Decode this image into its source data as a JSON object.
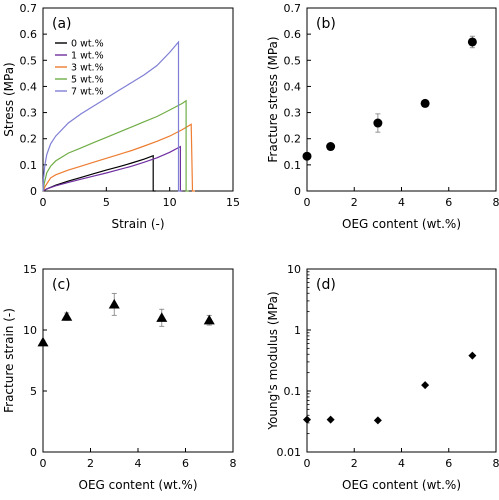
{
  "chart_data": [
    {
      "type": "line",
      "panel_label": "(a)",
      "xlabel": "Strain (-)",
      "ylabel": "Stress (MPa)",
      "xlim": [
        0,
        15
      ],
      "ylim": [
        0,
        0.7
      ],
      "xticks": [
        0,
        5,
        10,
        15
      ],
      "yticks": [
        0,
        0.1,
        0.2,
        0.3,
        0.4,
        0.5,
        0.6,
        0.7
      ],
      "legend_position": "top-left",
      "series": [
        {
          "name": "0 wt.%",
          "color": "#000000",
          "x": [
            0,
            0.3,
            1,
            2,
            3,
            4,
            5,
            6,
            7,
            8,
            8.7,
            8.7,
            8.9
          ],
          "y": [
            0,
            0.008,
            0.022,
            0.038,
            0.052,
            0.066,
            0.08,
            0.093,
            0.107,
            0.122,
            0.135,
            0,
            0
          ]
        },
        {
          "name": "1 wt.%",
          "color": "#7030a0",
          "x": [
            0,
            0.3,
            1,
            2,
            3,
            4,
            5,
            6,
            7,
            8,
            9,
            10,
            10.85,
            10.85,
            11.0
          ],
          "y": [
            0,
            0.008,
            0.02,
            0.033,
            0.045,
            0.057,
            0.069,
            0.082,
            0.095,
            0.11,
            0.127,
            0.148,
            0.17,
            0,
            0
          ]
        },
        {
          "name": "3 wt.%",
          "color": "#ed7d31",
          "x": [
            0,
            0.2,
            0.6,
            1,
            2,
            3,
            4,
            5,
            6,
            7,
            8,
            9,
            10,
            11,
            11.7,
            11.8,
            12.0
          ],
          "y": [
            0,
            0.02,
            0.05,
            0.062,
            0.08,
            0.095,
            0.11,
            0.125,
            0.14,
            0.155,
            0.172,
            0.19,
            0.21,
            0.235,
            0.255,
            0,
            0
          ]
        },
        {
          "name": "5 wt.%",
          "color": "#70ad47",
          "x": [
            0,
            0.1,
            0.3,
            0.6,
            1,
            2,
            3,
            4,
            5,
            6,
            7,
            8,
            9,
            10,
            11,
            11.3,
            11.3,
            11.5
          ],
          "y": [
            0,
            0.03,
            0.07,
            0.095,
            0.115,
            0.145,
            0.165,
            0.185,
            0.205,
            0.225,
            0.245,
            0.265,
            0.285,
            0.31,
            0.335,
            0.345,
            0,
            0
          ]
        },
        {
          "name": "7 wt.%",
          "color": "#7f7fd5",
          "x": [
            0,
            0.05,
            0.15,
            0.3,
            0.6,
            1,
            2,
            3,
            4,
            5,
            6,
            7,
            8,
            9,
            10,
            10.7,
            10.7,
            10.9
          ],
          "y": [
            0,
            0.05,
            0.1,
            0.14,
            0.18,
            0.21,
            0.26,
            0.295,
            0.325,
            0.355,
            0.385,
            0.415,
            0.445,
            0.48,
            0.53,
            0.57,
            0,
            0
          ]
        }
      ]
    },
    {
      "type": "scatter",
      "panel_label": "(b)",
      "xlabel": "OEG content (wt.%)",
      "ylabel": "Fracture stress (MPa)",
      "xlim": [
        0,
        8
      ],
      "ylim": [
        0,
        0.7
      ],
      "xticks": [
        0,
        2,
        4,
        6,
        8
      ],
      "yticks": [
        0,
        0.1,
        0.2,
        0.3,
        0.4,
        0.5,
        0.6,
        0.7
      ],
      "marker": "circle",
      "x": [
        0,
        1,
        3,
        5,
        7
      ],
      "y": [
        0.133,
        0.17,
        0.26,
        0.335,
        0.57
      ],
      "err": [
        0.005,
        0.008,
        0.035,
        0.012,
        0.022
      ]
    },
    {
      "type": "scatter",
      "panel_label": "(c)",
      "xlabel": "OEG content (wt.%)",
      "ylabel": "Fracture strain (-)",
      "xlim": [
        0,
        8
      ],
      "ylim": [
        0,
        15
      ],
      "xticks": [
        0,
        2,
        4,
        6,
        8
      ],
      "yticks": [
        0,
        5,
        10,
        15
      ],
      "marker": "triangle",
      "x": [
        0,
        1,
        3,
        5,
        7
      ],
      "y": [
        9.0,
        11.1,
        12.1,
        11.0,
        10.8
      ],
      "err": [
        0.1,
        0.3,
        0.9,
        0.7,
        0.4
      ]
    },
    {
      "type": "scatter",
      "panel_label": "(d)",
      "xlabel": "OEG content (wt.%)",
      "ylabel": "Young's modulus (MPa)",
      "xlim": [
        0,
        8
      ],
      "ylim": [
        0.01,
        10
      ],
      "yscale": "log",
      "xticks": [
        0,
        2,
        4,
        6,
        8
      ],
      "yticks": [
        0.01,
        0.1,
        1,
        10
      ],
      "marker": "diamond",
      "x": [
        0,
        1,
        3,
        5,
        7
      ],
      "y": [
        0.034,
        0.034,
        0.033,
        0.125,
        0.38
      ],
      "err": [
        0,
        0,
        0,
        0,
        0
      ]
    }
  ]
}
